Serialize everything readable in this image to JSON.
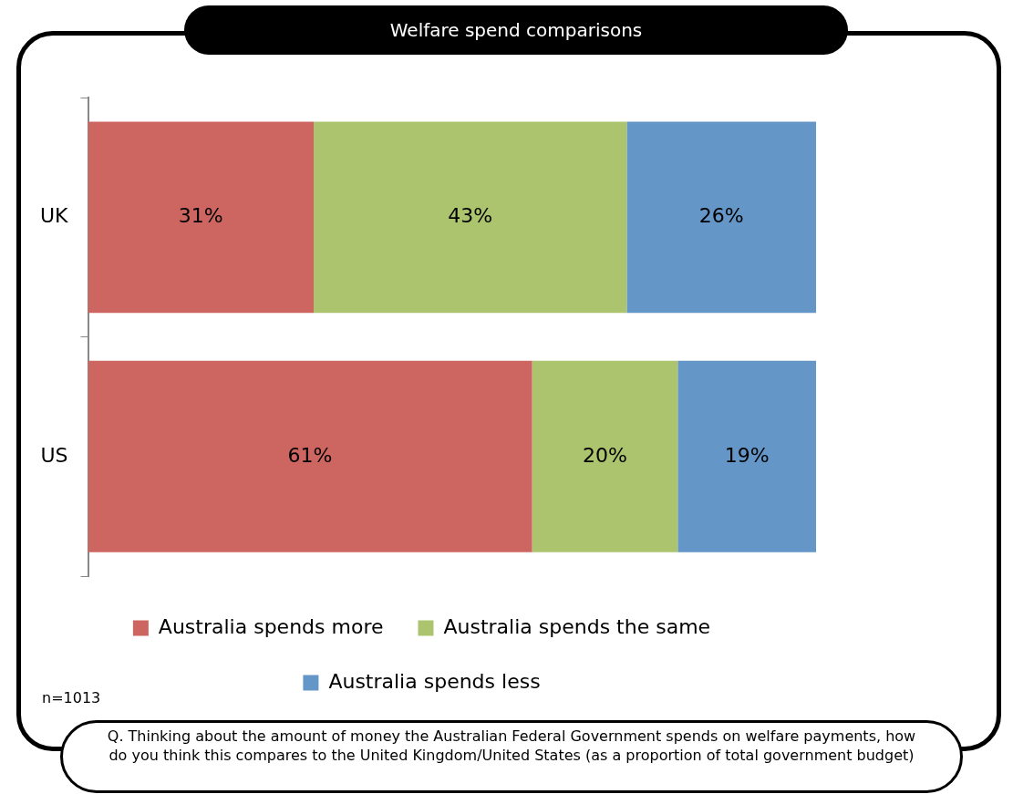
{
  "chart_data": {
    "type": "bar",
    "orientation": "horizontal",
    "stacked": true,
    "title": "Welfare spend comparisons",
    "categories": [
      "UK",
      "US"
    ],
    "series": [
      {
        "name": "Australia spends more",
        "color": "#cd6660",
        "values": [
          31,
          61
        ],
        "value_labels": [
          "31%",
          "61%"
        ]
      },
      {
        "name": "Australia spends the same",
        "color": "#acc46e",
        "values": [
          43,
          20
        ],
        "value_labels": [
          "43%",
          "20%"
        ]
      },
      {
        "name": "Australia spends less",
        "color": "#6496c8",
        "values": [
          26,
          19
        ],
        "value_labels": [
          "26%",
          "19%"
        ]
      }
    ],
    "xlim": [
      0,
      100
    ],
    "tick_labels": "y",
    "grid": false,
    "legend": "bottom",
    "annotations": [
      "n=1013",
      "Q. Thinking about the amount of money the Australian Federal Government spends on welfare payments, how do you think this compares to the United Kingdom/United States (as a proportion of total government budget)"
    ]
  }
}
